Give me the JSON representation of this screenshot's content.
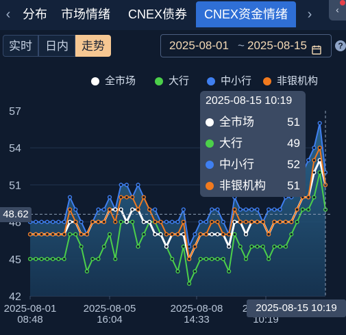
{
  "tabs": [
    {
      "label": "分布",
      "active": false
    },
    {
      "label": "市场情绪",
      "active": false
    },
    {
      "label": "CNEX债券",
      "active": false
    },
    {
      "label": "CNEX资金情绪",
      "active": true
    }
  ],
  "nav": {
    "prev_icon": "‹",
    "next_icon": "›",
    "corner_icon": "‹"
  },
  "modes": [
    {
      "label": "实时",
      "active": false
    },
    {
      "label": "日内",
      "active": false
    },
    {
      "label": "走势",
      "active": true
    }
  ],
  "date_range": {
    "start": "2025-08-01",
    "separator": "~",
    "end": "2025-08-15",
    "calendar_icon": "calendar-icon"
  },
  "help_label": "?",
  "colors": {
    "all_market": "#ffffff",
    "large_bank": "#4cd04a",
    "small_bank": "#3f7ff0",
    "non_bank": "#f27a1e"
  },
  "tooltip": {
    "title": "2025-08-15 10:19",
    "rows": [
      {
        "name": "全市场",
        "value": "51"
      },
      {
        "name": "大行",
        "value": "49"
      },
      {
        "name": "中小行",
        "value": "52"
      },
      {
        "name": "非银机构",
        "value": "51"
      }
    ]
  },
  "crosshair": {
    "y_label": "48.62",
    "x_label": "2025-08-15 10:19"
  },
  "chart_data": {
    "type": "line",
    "yticks": [
      "57",
      "54",
      "51",
      "48",
      "45",
      "42"
    ],
    "ylim": [
      42,
      57
    ],
    "xticks": [
      {
        "line1": "2025-08-01",
        "line2": "08:48"
      },
      {
        "line1": "2025-08-05",
        "line2": "16:04"
      },
      {
        "line1": "2025-08-08",
        "line2": "14:33"
      },
      {
        "line1": "2025-08-1",
        "line2": "10:19"
      }
    ],
    "series": [
      {
        "name": "全市场",
        "values": [
          47,
          47,
          47,
          47,
          47,
          47,
          47,
          48,
          48,
          47,
          47,
          48,
          48,
          48,
          49,
          49,
          49,
          48,
          49,
          49,
          48,
          48,
          47,
          47,
          46,
          47,
          47,
          47,
          45,
          46,
          47,
          47,
          47,
          47,
          47,
          46,
          48,
          48,
          47,
          48,
          48,
          48,
          47,
          48,
          48,
          48,
          48,
          49,
          50,
          50,
          52,
          53,
          51
        ]
      },
      {
        "name": "大行",
        "values": [
          45,
          45,
          45,
          45,
          45,
          45,
          45,
          47,
          47,
          46,
          44,
          45,
          45,
          46,
          47,
          45,
          48,
          48,
          48,
          46,
          47,
          48,
          48,
          47,
          46,
          45,
          44,
          46,
          43,
          44,
          45,
          45,
          45,
          45,
          45,
          44,
          47,
          46,
          45,
          46,
          46,
          46,
          45,
          46,
          46,
          46,
          47,
          48,
          49,
          49,
          50,
          52,
          49
        ]
      },
      {
        "name": "中小行",
        "values": [
          48,
          48,
          48,
          48,
          48,
          48,
          48,
          50,
          49,
          48,
          47,
          48,
          49,
          49,
          50,
          49,
          51,
          51,
          50,
          51,
          50,
          49,
          49,
          48,
          48,
          48,
          48,
          49,
          46,
          47,
          48,
          48,
          49,
          49,
          48,
          47,
          50,
          49,
          49,
          49,
          49,
          48,
          49,
          49,
          49,
          50,
          50,
          51,
          52,
          53,
          54,
          56,
          52
        ]
      },
      {
        "name": "非银机构",
        "values": [
          47,
          47,
          47,
          47,
          47,
          47,
          47,
          49,
          48,
          47,
          47,
          48,
          48,
          48,
          49,
          48,
          50,
          50,
          50,
          49,
          50,
          49,
          48,
          48,
          47,
          47,
          47,
          48,
          45,
          46,
          47,
          47,
          48,
          48,
          47,
          47,
          49,
          48,
          48,
          48,
          48,
          48,
          47,
          48,
          48,
          48,
          48,
          49,
          50,
          50,
          53,
          54,
          51
        ]
      }
    ]
  }
}
